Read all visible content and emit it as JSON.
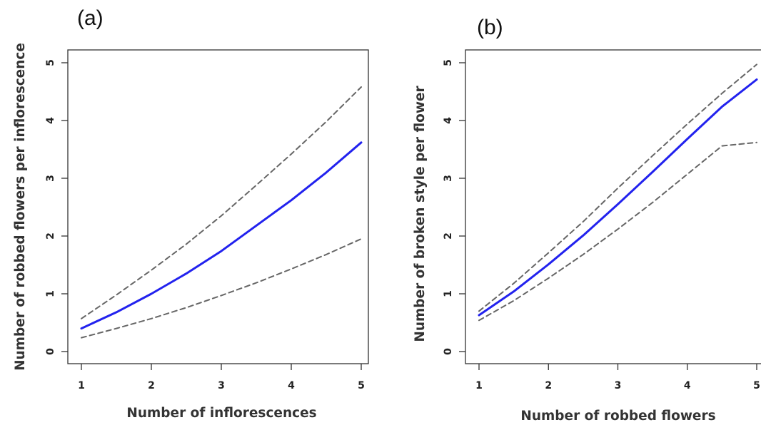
{
  "chart_data": [
    {
      "type": "line",
      "panel_label": "(a)",
      "xlabel": "Number of inflorescences",
      "ylabel": "Number of robbed flowers per inflorescence",
      "xlim": [
        1,
        5
      ],
      "ylim": [
        0,
        5
      ],
      "x_ticks": [
        1,
        2,
        3,
        4,
        5
      ],
      "y_ticks": [
        0,
        1,
        2,
        3,
        4,
        5
      ],
      "grid": false,
      "x": [
        1,
        1.5,
        2,
        2.5,
        3,
        3.5,
        4,
        4.5,
        5
      ],
      "series": [
        {
          "role": "fit",
          "style": "solid",
          "color": "#2222ee",
          "values": [
            0.4,
            0.68,
            1.0,
            1.35,
            1.74,
            2.18,
            2.62,
            3.1,
            3.62
          ]
        },
        {
          "role": "upper",
          "style": "dashed",
          "color": "#666666",
          "values": [
            0.57,
            0.98,
            1.41,
            1.86,
            2.35,
            2.88,
            3.42,
            3.98,
            4.58
          ]
        },
        {
          "role": "lower",
          "style": "dashed",
          "color": "#666666",
          "values": [
            0.24,
            0.4,
            0.57,
            0.76,
            0.97,
            1.19,
            1.43,
            1.68,
            1.95
          ]
        }
      ]
    },
    {
      "type": "line",
      "panel_label": "(b)",
      "xlabel": "Number of robbed flowers",
      "ylabel": "Number of broken style per flower",
      "xlim": [
        1,
        5
      ],
      "ylim": [
        0,
        5
      ],
      "x_ticks": [
        1,
        2,
        3,
        4,
        5
      ],
      "y_ticks": [
        0,
        1,
        2,
        3,
        4,
        5
      ],
      "grid": false,
      "x": [
        1,
        1.5,
        2,
        2.5,
        3,
        3.5,
        4,
        4.5,
        5
      ],
      "series": [
        {
          "role": "fit",
          "style": "solid",
          "color": "#2222ee",
          "values": [
            0.63,
            1.04,
            1.51,
            2.01,
            2.55,
            3.11,
            3.68,
            4.24,
            4.71
          ]
        },
        {
          "role": "upper",
          "style": "dashed",
          "color": "#666666",
          "values": [
            0.7,
            1.18,
            1.71,
            2.25,
            2.83,
            3.39,
            3.94,
            4.47,
            4.97
          ]
        },
        {
          "role": "lower",
          "style": "dashed",
          "color": "#666666",
          "values": [
            0.54,
            0.88,
            1.27,
            1.68,
            2.12,
            2.58,
            3.07,
            3.56,
            3.62
          ]
        }
      ]
    }
  ]
}
